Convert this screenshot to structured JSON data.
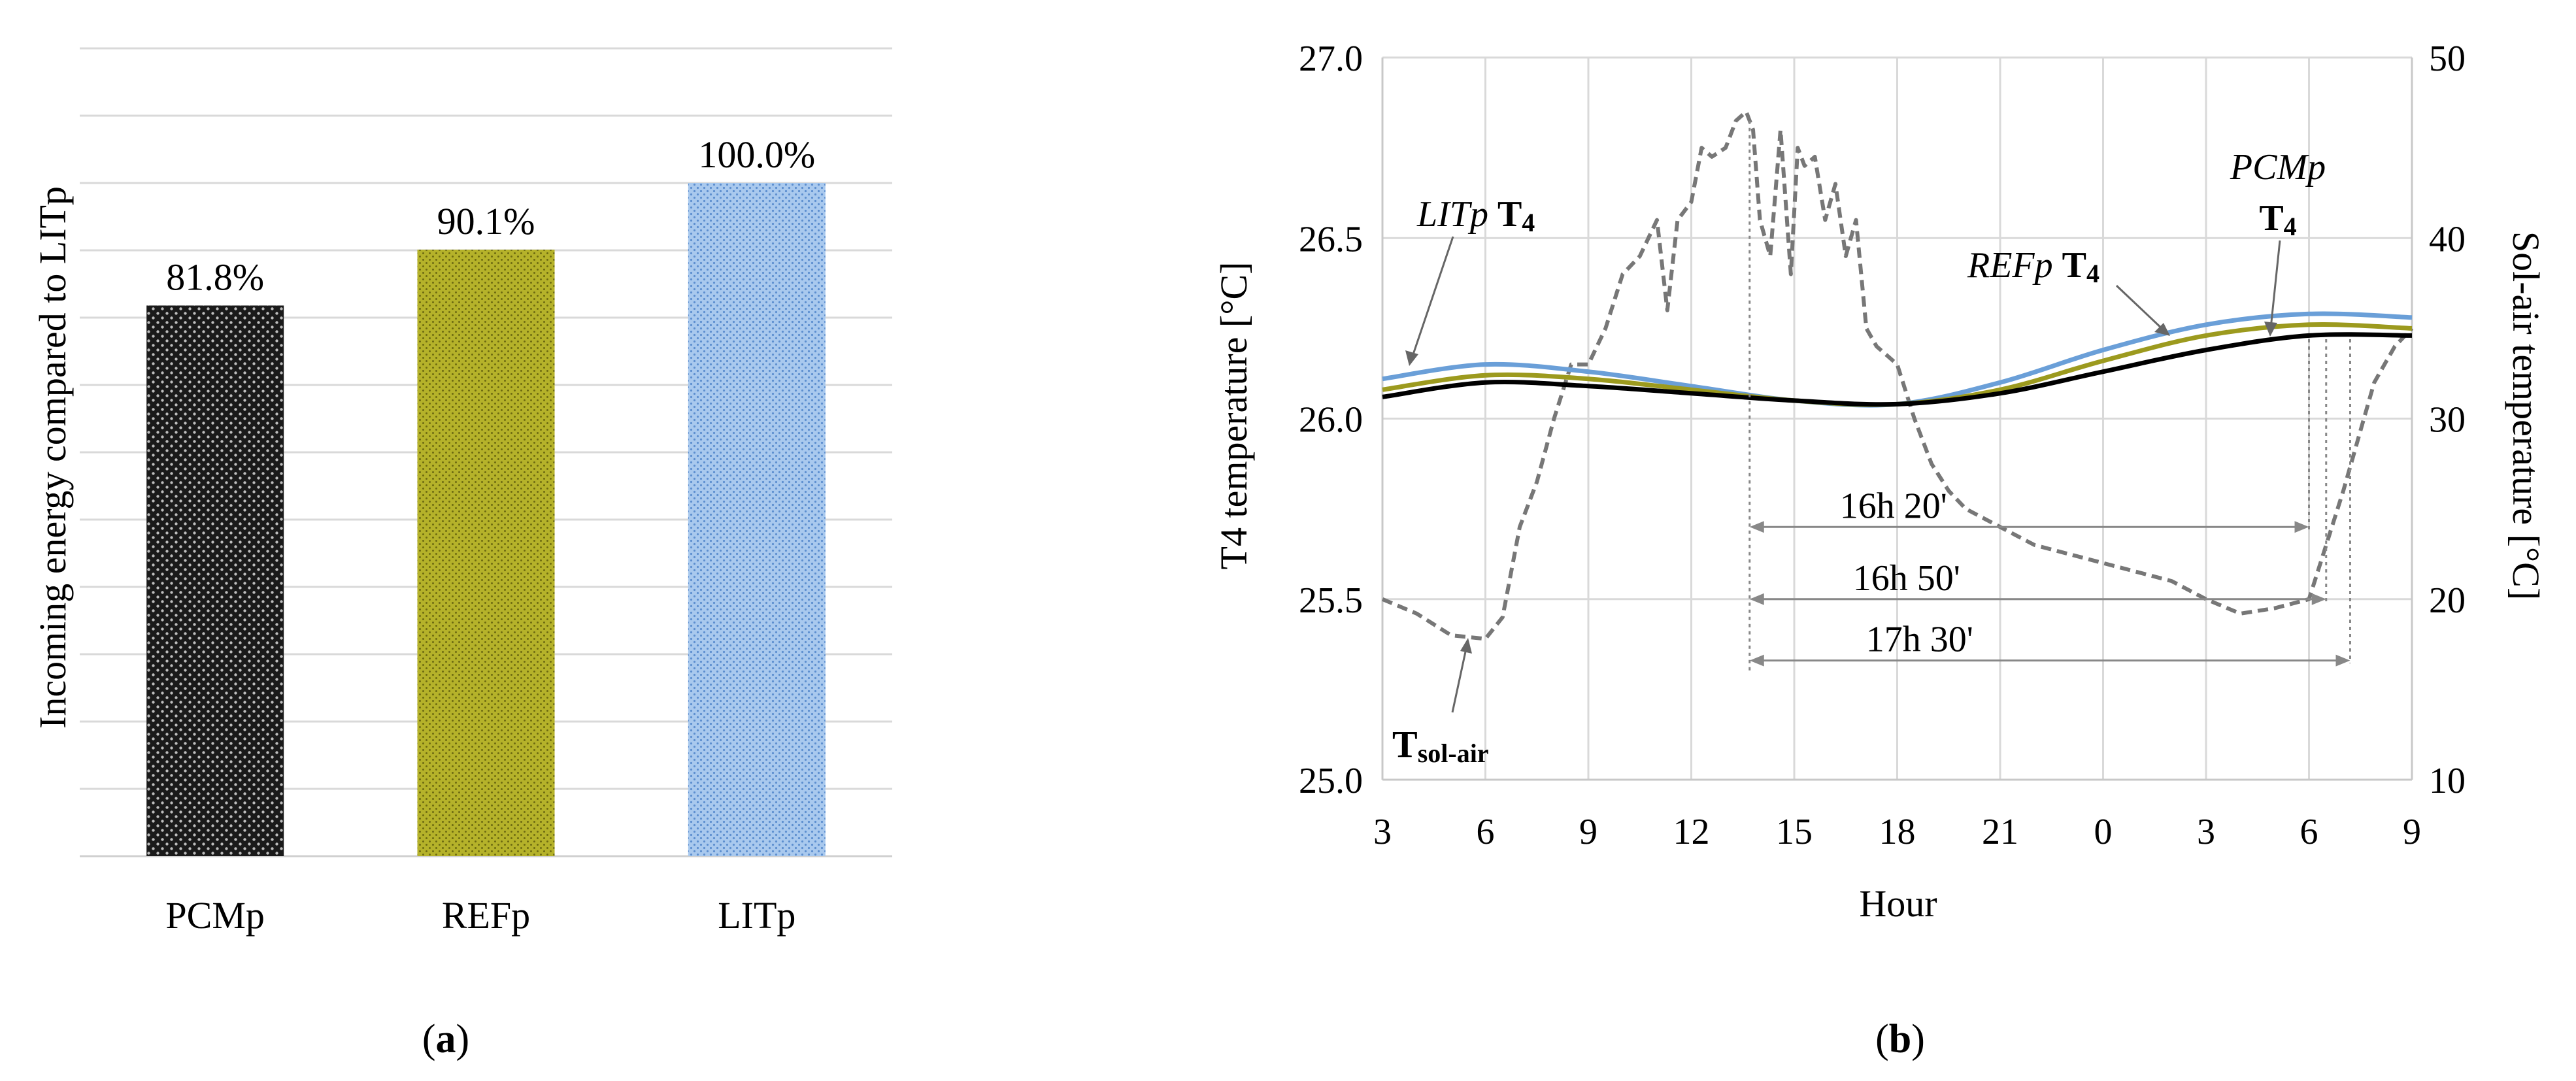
{
  "panel_a_label": "a",
  "panel_b_label": "b",
  "chart_data": [
    {
      "type": "bar",
      "ylabel": "Incoming energy compared to LITp",
      "categories": [
        "PCMp",
        "REFp",
        "LITp"
      ],
      "values": [
        81.8,
        90.1,
        100.0
      ],
      "value_labels": [
        "81.8%",
        "90.1%",
        "100.0%"
      ],
      "ylim": [
        0,
        120
      ],
      "grid": true,
      "colors": [
        "#1a1a1a",
        "#b5b22a",
        "#8fb8e6"
      ]
    },
    {
      "type": "line",
      "xlabel": "Hour",
      "ylabel": "T4 temperature [°C]",
      "y2label": "Sol-air temperature [°C]",
      "x_ticks": [
        "3",
        "6",
        "9",
        "12",
        "15",
        "18",
        "21",
        "0",
        "3",
        "6",
        "9"
      ],
      "xlim": [
        3,
        33
      ],
      "ylim": [
        25.0,
        27.0
      ],
      "y_ticks": [
        "25.0",
        "25.5",
        "26.0",
        "26.5",
        "27.0"
      ],
      "y2lim": [
        10,
        50
      ],
      "y2_ticks": [
        "10",
        "20",
        "30",
        "40",
        "50"
      ],
      "grid": true,
      "series": [
        {
          "axis": "left",
          "color": "#6a9fd8",
          "x": [
            3,
            6,
            9,
            12,
            15,
            18,
            21,
            24,
            27,
            30,
            33
          ],
          "y": [
            26.11,
            26.15,
            26.13,
            26.09,
            26.05,
            26.04,
            26.1,
            26.19,
            26.26,
            26.29,
            26.28
          ]
        },
        {
          "axis": "left",
          "color": "#9c9a1e",
          "x": [
            3,
            6,
            9,
            12,
            15,
            18,
            21,
            24,
            27,
            30,
            33
          ],
          "y": [
            26.08,
            26.12,
            26.11,
            26.08,
            26.05,
            26.04,
            26.08,
            26.16,
            26.23,
            26.26,
            26.25
          ]
        },
        {
          "axis": "left",
          "color": "#000000",
          "x": [
            3,
            6,
            9,
            12,
            15,
            18,
            21,
            24,
            27,
            30,
            33
          ],
          "y": [
            26.06,
            26.1,
            26.09,
            26.07,
            26.05,
            26.04,
            26.07,
            26.13,
            26.19,
            26.23,
            26.23
          ]
        },
        {
          "axis": "right",
          "color": "#777777",
          "dash": true,
          "x": [
            3,
            4,
            5,
            6,
            6.5,
            7,
            7.5,
            8,
            8.5,
            9,
            9.5,
            10,
            10.5,
            11,
            11.3,
            11.6,
            12,
            12.3,
            12.6,
            13,
            13.3,
            13.6,
            13.8,
            14,
            14.3,
            14.6,
            14.9,
            15.1,
            15.3,
            15.6,
            15.9,
            16.2,
            16.5,
            16.8,
            17.1,
            17.4,
            17.7,
            18,
            18.5,
            19,
            19.5,
            20,
            21,
            22,
            23,
            24,
            25,
            26,
            27,
            28,
            29,
            30,
            30.5,
            31,
            31.3,
            31.6,
            31.9,
            32.2,
            32.5,
            33
          ],
          "y": [
            20,
            19.2,
            18,
            17.8,
            19,
            24,
            26.5,
            30,
            33,
            33,
            35,
            38,
            39,
            41,
            36,
            41,
            42,
            45,
            44.5,
            45,
            46.5,
            47,
            46,
            41,
            39,
            46,
            38,
            45,
            44,
            44.5,
            41,
            43,
            39,
            41,
            35,
            34,
            33.5,
            33,
            30,
            27.5,
            26,
            25,
            24,
            23,
            22.5,
            22,
            21.5,
            21,
            20,
            19.2,
            19.5,
            20,
            23,
            26,
            28,
            30,
            32,
            33,
            34,
            35
          ]
        }
      ],
      "annotations": {
        "litp_label_italic": "LITp",
        "litp_label_bold": "T",
        "litp_label_sub": "4",
        "refp_label_italic": "REFp",
        "refp_label_bold": "T",
        "refp_label_sub": "4",
        "pcmp_label_italic": "PCMp",
        "pcmp_label_bold": "T",
        "pcmp_label_sub": "4",
        "solair_label_bold": "T",
        "solair_label_sub": "sol-air"
      },
      "time_lags": [
        {
          "label": "16h 20'",
          "from_hour": 13.7,
          "to_hour": 30.0
        },
        {
          "label": "16h 50'",
          "from_hour": 13.7,
          "to_hour": 30.5
        },
        {
          "label": "17h 30'",
          "from_hour": 13.7,
          "to_hour": 31.2
        }
      ]
    }
  ]
}
